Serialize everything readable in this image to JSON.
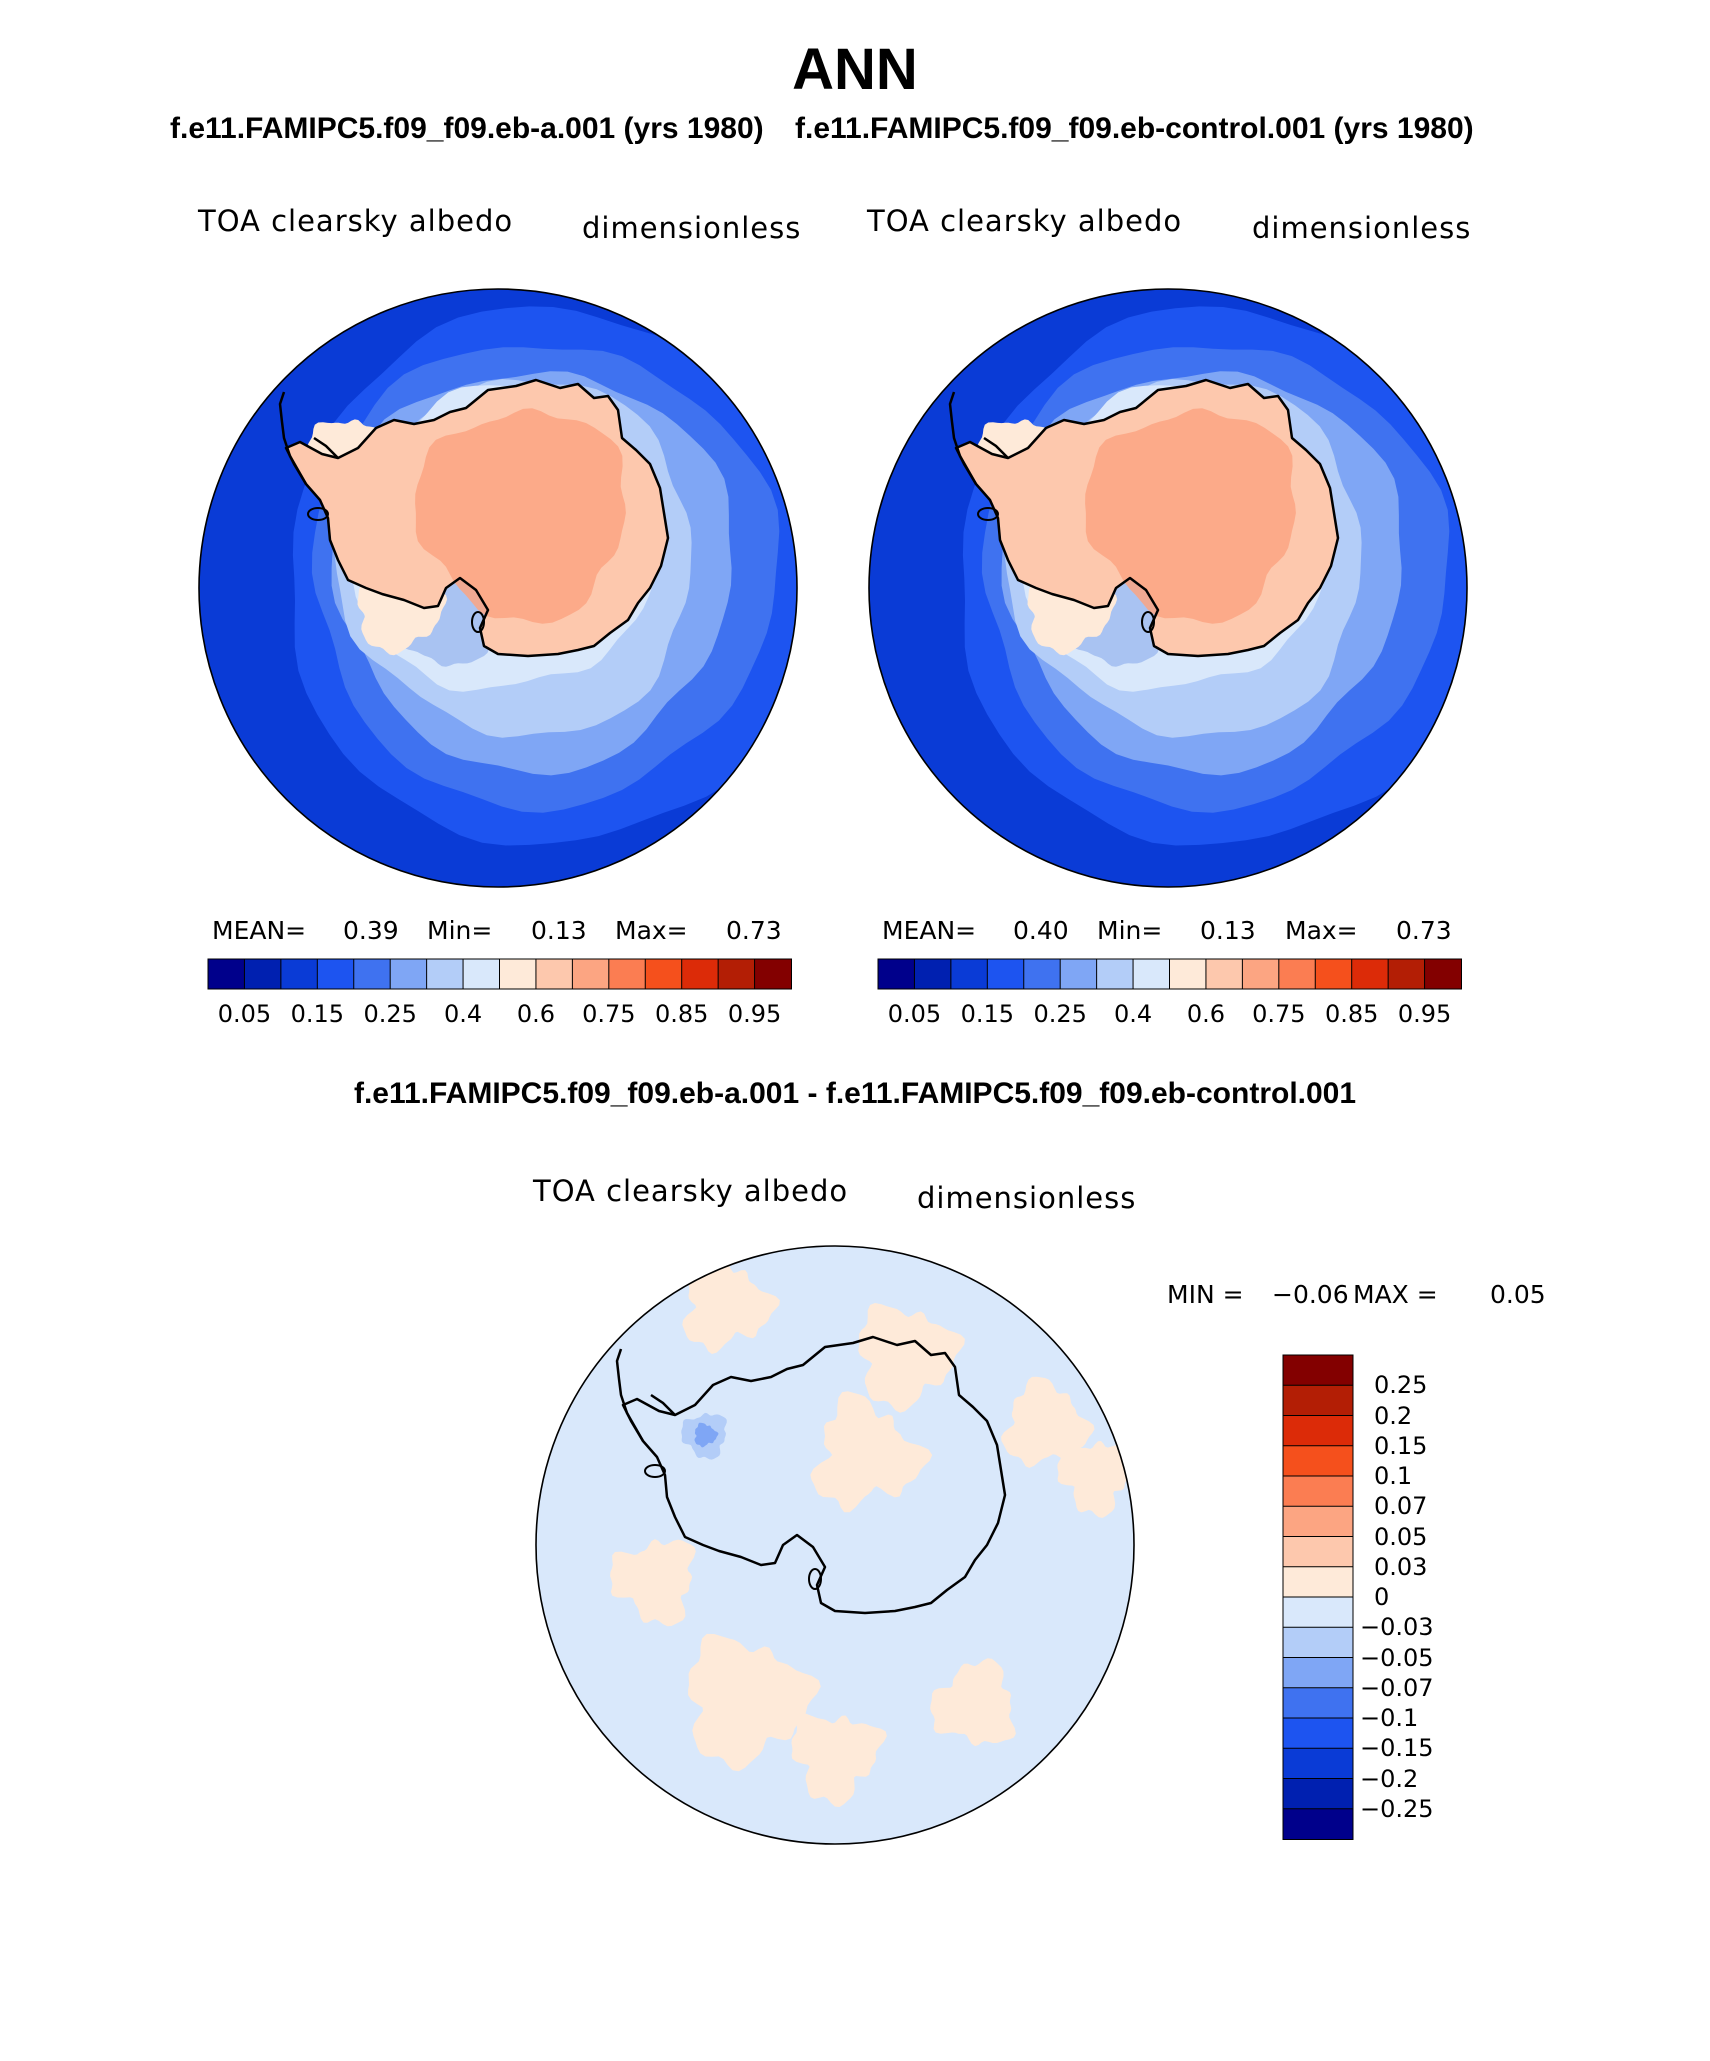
{
  "season": "ANN",
  "panels": [
    {
      "title": "f.e11.FAMIPC5.f09_f09.eb-a.001 (yrs 1980)",
      "variable": "TOA clearsky albedo",
      "units": "dimensionless",
      "stats": {
        "mean_label": "MEAN=",
        "mean": "0.39",
        "min_label": "Min=",
        "min": "0.13",
        "max_label": "Max=",
        "max": "0.73"
      }
    },
    {
      "title": "f.e11.FAMIPC5.f09_f09.eb-control.001 (yrs 1980)",
      "variable": "TOA clearsky albedo",
      "units": "dimensionless",
      "stats": {
        "mean_label": "MEAN=",
        "mean": "0.40",
        "min_label": "Min=",
        "min": "0.13",
        "max_label": "Max=",
        "max": "0.73"
      }
    }
  ],
  "main_colorbar": {
    "colors": [
      "#00008b",
      "#0020b0",
      "#0a3bd6",
      "#1d54f0",
      "#3f72f0",
      "#7fa6f5",
      "#b3cdf8",
      "#d9e8fb",
      "#feead9",
      "#fdc8ad",
      "#fca582",
      "#fb7d52",
      "#f5501c",
      "#dc2b08",
      "#b31e05",
      "#830000"
    ],
    "tick_labels": [
      "0.05",
      "0.15",
      "0.25",
      "0.4",
      "0.6",
      "0.75",
      "0.85",
      "0.95"
    ]
  },
  "difference": {
    "title": "f.e11.FAMIPC5.f09_f09.eb-a.001 - f.e11.FAMIPC5.f09_f09.eb-control.001",
    "variable": "TOA clearsky albedo",
    "units": "dimensionless",
    "min_label": "MIN =",
    "min": "−0.06",
    "max_label": "MAX =",
    "max": "0.05",
    "colorbar": {
      "colors": [
        "#00008b",
        "#0020b0",
        "#0a3bd6",
        "#1d54f0",
        "#3f72f0",
        "#7fa6f5",
        "#b3cdf8",
        "#d9e8fb",
        "#feead9",
        "#fdc8ad",
        "#fca582",
        "#fb7d52",
        "#f5501c",
        "#dc2b08",
        "#b31e05",
        "#830000"
      ],
      "tick_labels": [
        "−0.25",
        "−0.2",
        "−0.15",
        "−0.1",
        "−0.07",
        "−0.05",
        "−0.03",
        "0",
        "0.03",
        "0.05",
        "0.07",
        "0.1",
        "0.15",
        "0.2",
        "0.25"
      ]
    }
  }
}
